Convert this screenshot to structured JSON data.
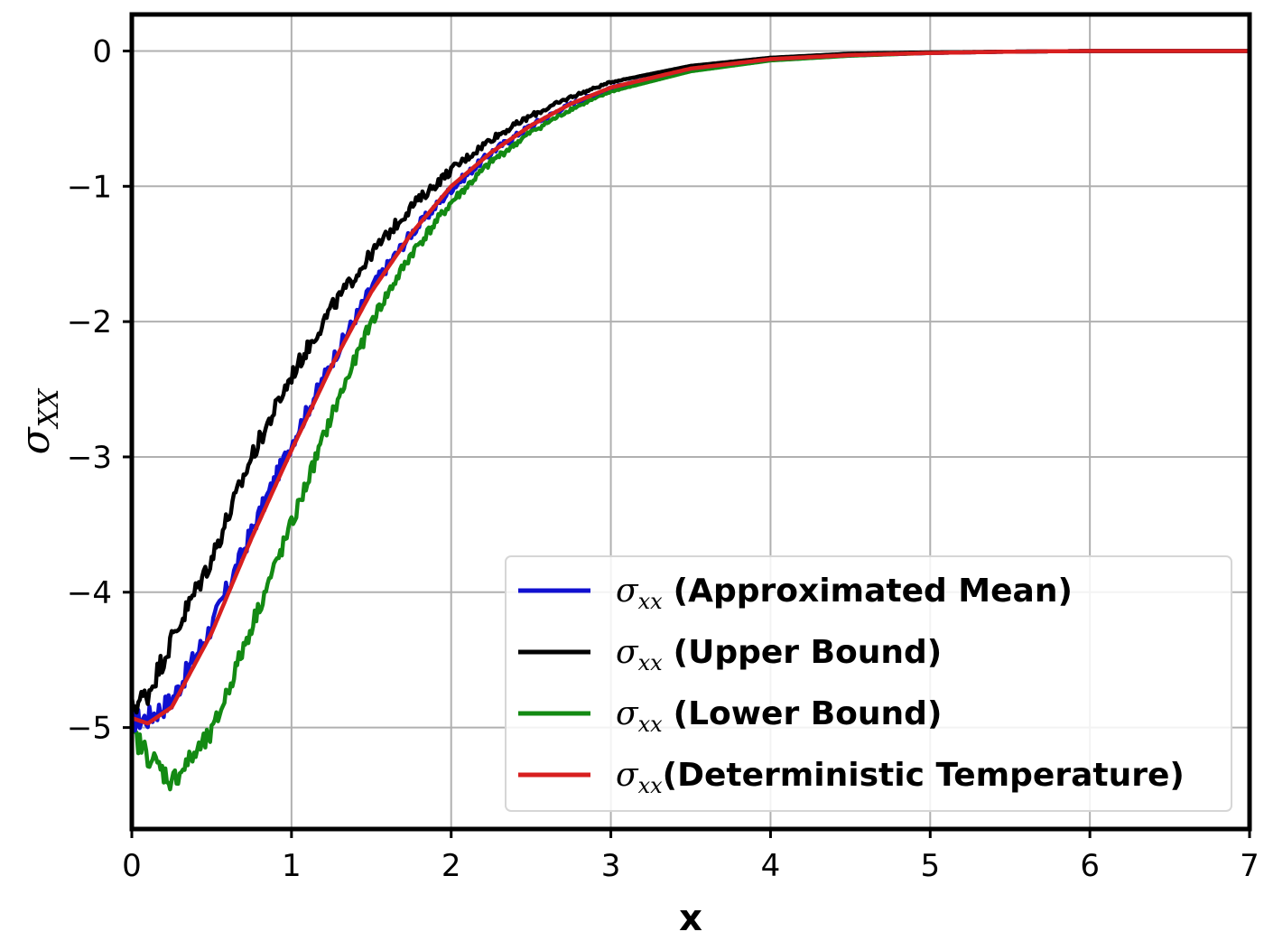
{
  "chart_data": {
    "type": "line",
    "title": "",
    "xlabel": "x",
    "ylabel_symbol": "σ",
    "ylabel_sub": "XX",
    "xlim": [
      0,
      7
    ],
    "ylim": [
      -5.75,
      0.27
    ],
    "xticks": [
      0,
      1,
      2,
      3,
      4,
      5,
      6,
      7
    ],
    "xtick_labels": [
      "0",
      "1",
      "2",
      "3",
      "4",
      "5",
      "6",
      "7"
    ],
    "yticks": [
      0,
      -1,
      -2,
      -3,
      -4,
      -5
    ],
    "ytick_labels": [
      "0",
      "−1",
      "−2",
      "−3",
      "−4",
      "−5"
    ],
    "grid": true,
    "legend_position": "lower-right",
    "x": [
      0,
      0.1,
      0.25,
      0.5,
      0.75,
      1.0,
      1.25,
      1.5,
      1.75,
      2.0,
      2.25,
      2.5,
      2.75,
      3.0,
      3.5,
      4.0,
      4.5,
      5.0,
      5.5,
      6.0,
      7.0
    ],
    "series": [
      {
        "name": "(Approximated Mean)",
        "sigma": "σ",
        "sub": "xx",
        "color": "#1010d0",
        "noise": 0.09,
        "values": [
          -4.95,
          -4.93,
          -4.8,
          -4.25,
          -3.55,
          -2.9,
          -2.3,
          -1.75,
          -1.35,
          -1.02,
          -0.75,
          -0.55,
          -0.39,
          -0.27,
          -0.13,
          -0.06,
          -0.03,
          -0.015,
          -0.005,
          0,
          0
        ]
      },
      {
        "name": "(Upper Bound)",
        "sigma": "σ",
        "sub": "xx",
        "color": "#000000",
        "noise": 0.09,
        "values": [
          -4.85,
          -4.75,
          -4.35,
          -3.75,
          -3.0,
          -2.4,
          -1.9,
          -1.5,
          -1.15,
          -0.88,
          -0.65,
          -0.48,
          -0.34,
          -0.23,
          -0.11,
          -0.05,
          -0.02,
          -0.01,
          -0.005,
          0,
          0
        ]
      },
      {
        "name": "(Lower Bound)",
        "sigma": "σ",
        "sub": "xx",
        "color": "#138a13",
        "noise": 0.09,
        "values": [
          -5.05,
          -5.2,
          -5.4,
          -5.05,
          -4.25,
          -3.5,
          -2.7,
          -2.0,
          -1.5,
          -1.12,
          -0.82,
          -0.6,
          -0.43,
          -0.3,
          -0.15,
          -0.07,
          -0.035,
          -0.015,
          -0.005,
          0,
          0
        ]
      },
      {
        "name": "(Deterministic Temperature)",
        "sigma": "σ",
        "sub": "xx",
        "color": "#d81f1f",
        "noise": 0,
        "values": [
          -4.93,
          -4.97,
          -4.85,
          -4.3,
          -3.6,
          -2.95,
          -2.33,
          -1.78,
          -1.35,
          -1.0,
          -0.75,
          -0.55,
          -0.39,
          -0.27,
          -0.13,
          -0.06,
          -0.03,
          -0.015,
          -0.005,
          0,
          0
        ]
      }
    ]
  }
}
